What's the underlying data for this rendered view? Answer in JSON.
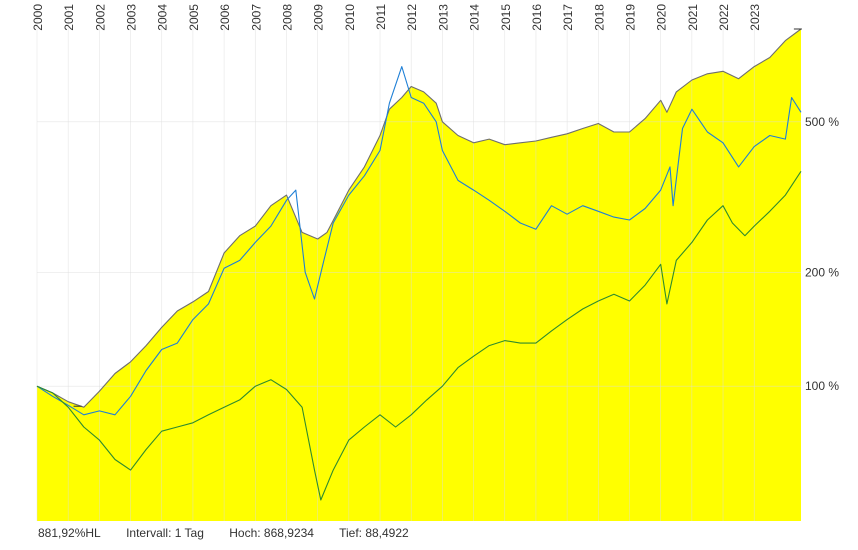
{
  "chart_data": {
    "type": "area",
    "y_scale": "log",
    "grid": true,
    "x_tick_labels": [
      "2000",
      "2001",
      "2002",
      "2003",
      "2004",
      "2005",
      "2006",
      "2007",
      "2008",
      "2009",
      "2010",
      "2011",
      "2012",
      "2013",
      "2014",
      "2015",
      "2016",
      "2017",
      "2018",
      "2019",
      "2020",
      "2021",
      "2022",
      "2023"
    ],
    "y_ticks": [
      {
        "value": 100,
        "label": "100 %"
      },
      {
        "value": 200,
        "label": "200 %"
      },
      {
        "value": 500,
        "label": "500 %"
      }
    ],
    "x_range": [
      2000.0,
      2024.5
    ],
    "y_range": [
      44,
      1000
    ],
    "series": [
      {
        "color": "#ffff00",
        "style": "area",
        "points": [
          [
            2000.0,
            100
          ],
          [
            2000.5,
            96
          ],
          [
            2001.0,
            91
          ],
          [
            2001.5,
            88
          ],
          [
            2002.0,
            97
          ],
          [
            2002.5,
            108
          ],
          [
            2003.0,
            116
          ],
          [
            2003.5,
            128
          ],
          [
            2004.0,
            143
          ],
          [
            2004.5,
            158
          ],
          [
            2005.0,
            167
          ],
          [
            2005.5,
            178
          ],
          [
            2006.0,
            225
          ],
          [
            2006.5,
            250
          ],
          [
            2007.0,
            265
          ],
          [
            2007.5,
            300
          ],
          [
            2008.0,
            320
          ],
          [
            2008.5,
            255
          ],
          [
            2009.0,
            245
          ],
          [
            2009.3,
            255
          ],
          [
            2009.6,
            285
          ],
          [
            2010.0,
            330
          ],
          [
            2010.5,
            380
          ],
          [
            2011.0,
            460
          ],
          [
            2011.3,
            540
          ],
          [
            2011.7,
            580
          ],
          [
            2012.0,
            620
          ],
          [
            2012.4,
            600
          ],
          [
            2012.8,
            560
          ],
          [
            2013.0,
            500
          ],
          [
            2013.5,
            460
          ],
          [
            2014.0,
            440
          ],
          [
            2014.5,
            450
          ],
          [
            2015.0,
            435
          ],
          [
            2015.5,
            440
          ],
          [
            2016.0,
            445
          ],
          [
            2016.5,
            455
          ],
          [
            2017.0,
            465
          ],
          [
            2017.5,
            480
          ],
          [
            2018.0,
            495
          ],
          [
            2018.5,
            470
          ],
          [
            2019.0,
            470
          ],
          [
            2019.5,
            510
          ],
          [
            2020.0,
            570
          ],
          [
            2020.2,
            530
          ],
          [
            2020.5,
            600
          ],
          [
            2021.0,
            645
          ],
          [
            2021.5,
            670
          ],
          [
            2022.0,
            680
          ],
          [
            2022.5,
            650
          ],
          [
            2023.0,
            700
          ],
          [
            2023.5,
            740
          ],
          [
            2024.0,
            820
          ],
          [
            2024.5,
            880
          ]
        ]
      },
      {
        "color": "#6e6e6e",
        "style": "line",
        "points": [
          [
            2000.0,
            100
          ],
          [
            2000.5,
            96
          ],
          [
            2001.0,
            91
          ],
          [
            2001.5,
            88
          ],
          [
            2002.0,
            97
          ],
          [
            2002.5,
            108
          ],
          [
            2003.0,
            116
          ],
          [
            2003.5,
            128
          ],
          [
            2004.0,
            143
          ],
          [
            2004.5,
            158
          ],
          [
            2005.0,
            167
          ],
          [
            2005.5,
            178
          ],
          [
            2006.0,
            225
          ],
          [
            2006.5,
            250
          ],
          [
            2007.0,
            265
          ],
          [
            2007.5,
            300
          ],
          [
            2008.0,
            320
          ],
          [
            2008.5,
            255
          ],
          [
            2009.0,
            245
          ],
          [
            2009.3,
            255
          ],
          [
            2009.6,
            285
          ],
          [
            2010.0,
            330
          ],
          [
            2010.5,
            380
          ],
          [
            2011.0,
            460
          ],
          [
            2011.3,
            540
          ],
          [
            2011.7,
            580
          ],
          [
            2012.0,
            620
          ],
          [
            2012.4,
            600
          ],
          [
            2012.8,
            560
          ],
          [
            2013.0,
            500
          ],
          [
            2013.5,
            460
          ],
          [
            2014.0,
            440
          ],
          [
            2014.5,
            450
          ],
          [
            2015.0,
            435
          ],
          [
            2015.5,
            440
          ],
          [
            2016.0,
            445
          ],
          [
            2016.5,
            455
          ],
          [
            2017.0,
            465
          ],
          [
            2017.5,
            480
          ],
          [
            2018.0,
            495
          ],
          [
            2018.5,
            470
          ],
          [
            2019.0,
            470
          ],
          [
            2019.5,
            510
          ],
          [
            2020.0,
            570
          ],
          [
            2020.2,
            530
          ],
          [
            2020.5,
            600
          ],
          [
            2021.0,
            645
          ],
          [
            2021.5,
            670
          ],
          [
            2022.0,
            680
          ],
          [
            2022.5,
            650
          ],
          [
            2023.0,
            700
          ],
          [
            2023.5,
            740
          ],
          [
            2024.0,
            820
          ],
          [
            2024.5,
            880
          ]
        ]
      },
      {
        "color": "#1e7fd6",
        "style": "line",
        "points": [
          [
            2000.0,
            100
          ],
          [
            2000.5,
            94
          ],
          [
            2001.0,
            89
          ],
          [
            2001.5,
            84
          ],
          [
            2002.0,
            86
          ],
          [
            2002.5,
            84
          ],
          [
            2003.0,
            94
          ],
          [
            2003.5,
            110
          ],
          [
            2004.0,
            125
          ],
          [
            2004.5,
            130
          ],
          [
            2005.0,
            150
          ],
          [
            2005.5,
            165
          ],
          [
            2006.0,
            205
          ],
          [
            2006.5,
            215
          ],
          [
            2007.0,
            240
          ],
          [
            2007.5,
            265
          ],
          [
            2008.0,
            310
          ],
          [
            2008.3,
            330
          ],
          [
            2008.6,
            200
          ],
          [
            2008.9,
            170
          ],
          [
            2009.2,
            215
          ],
          [
            2009.5,
            270
          ],
          [
            2010.0,
            320
          ],
          [
            2010.5,
            360
          ],
          [
            2011.0,
            420
          ],
          [
            2011.3,
            560
          ],
          [
            2011.7,
            700
          ],
          [
            2012.0,
            580
          ],
          [
            2012.4,
            560
          ],
          [
            2012.8,
            500
          ],
          [
            2013.0,
            420
          ],
          [
            2013.5,
            350
          ],
          [
            2014.0,
            330
          ],
          [
            2014.5,
            310
          ],
          [
            2015.0,
            290
          ],
          [
            2015.5,
            270
          ],
          [
            2016.0,
            260
          ],
          [
            2016.5,
            300
          ],
          [
            2017.0,
            285
          ],
          [
            2017.5,
            300
          ],
          [
            2018.0,
            290
          ],
          [
            2018.5,
            280
          ],
          [
            2019.0,
            275
          ],
          [
            2019.5,
            295
          ],
          [
            2020.0,
            330
          ],
          [
            2020.3,
            380
          ],
          [
            2020.4,
            300
          ],
          [
            2020.7,
            480
          ],
          [
            2021.0,
            540
          ],
          [
            2021.5,
            470
          ],
          [
            2022.0,
            440
          ],
          [
            2022.5,
            380
          ],
          [
            2023.0,
            430
          ],
          [
            2023.5,
            460
          ],
          [
            2024.0,
            450
          ],
          [
            2024.2,
            580
          ],
          [
            2024.5,
            530
          ]
        ]
      },
      {
        "color": "#2e8b2e",
        "style": "line",
        "points": [
          [
            2000.0,
            100
          ],
          [
            2000.5,
            96
          ],
          [
            2001.0,
            88
          ],
          [
            2001.5,
            78
          ],
          [
            2002.0,
            72
          ],
          [
            2002.5,
            64
          ],
          [
            2003.0,
            60
          ],
          [
            2003.5,
            68
          ],
          [
            2004.0,
            76
          ],
          [
            2004.5,
            78
          ],
          [
            2005.0,
            80
          ],
          [
            2005.5,
            84
          ],
          [
            2006.0,
            88
          ],
          [
            2006.5,
            92
          ],
          [
            2007.0,
            100
          ],
          [
            2007.5,
            104
          ],
          [
            2008.0,
            98
          ],
          [
            2008.5,
            88
          ],
          [
            2008.9,
            60
          ],
          [
            2009.1,
            50
          ],
          [
            2009.5,
            60
          ],
          [
            2010.0,
            72
          ],
          [
            2010.5,
            78
          ],
          [
            2011.0,
            84
          ],
          [
            2011.5,
            78
          ],
          [
            2012.0,
            84
          ],
          [
            2012.5,
            92
          ],
          [
            2013.0,
            100
          ],
          [
            2013.5,
            112
          ],
          [
            2014.0,
            120
          ],
          [
            2014.5,
            128
          ],
          [
            2015.0,
            132
          ],
          [
            2015.5,
            130
          ],
          [
            2016.0,
            130
          ],
          [
            2016.5,
            140
          ],
          [
            2017.0,
            150
          ],
          [
            2017.5,
            160
          ],
          [
            2018.0,
            168
          ],
          [
            2018.5,
            175
          ],
          [
            2019.0,
            168
          ],
          [
            2019.5,
            185
          ],
          [
            2020.0,
            210
          ],
          [
            2020.2,
            165
          ],
          [
            2020.5,
            215
          ],
          [
            2021.0,
            240
          ],
          [
            2021.5,
            275
          ],
          [
            2022.0,
            300
          ],
          [
            2022.3,
            270
          ],
          [
            2022.7,
            250
          ],
          [
            2023.0,
            265
          ],
          [
            2023.5,
            290
          ],
          [
            2024.0,
            320
          ],
          [
            2024.5,
            370
          ]
        ]
      }
    ]
  },
  "footer": {
    "value": "881,92%HL",
    "interval": "Intervall: 1 Tag",
    "high": "Hoch: 868,9234",
    "low": "Tief: 88,4922"
  }
}
